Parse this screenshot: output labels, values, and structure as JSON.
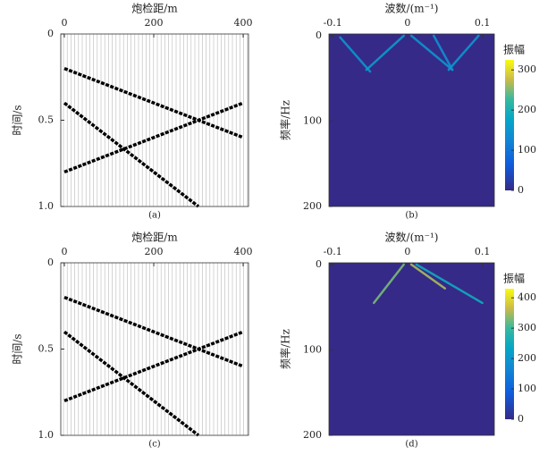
{
  "chart_data": [
    {
      "type": "wiggle",
      "xlabel": "炮检距/m",
      "ylabel": "时间/s",
      "caption": "(a)",
      "xlim": [
        -8,
        412
      ],
      "ylim": [
        0,
        1
      ],
      "xticks": [
        0,
        200,
        400
      ],
      "yticks": [
        0,
        0.5,
        {
          "value": 1,
          "label": "1.0"
        }
      ],
      "series": [
        {
          "x": [
            0,
            400
          ],
          "y": [
            0.2,
            0.6
          ]
        },
        {
          "x": [
            0,
            300
          ],
          "y": [
            0.4,
            1.0
          ]
        },
        {
          "x": [
            0,
            400
          ],
          "y": [
            0.8,
            0.4
          ]
        }
      ],
      "color": "#000000"
    },
    {
      "type": "fk",
      "xlabel": "波数/(m⁻¹)",
      "ylabel": "频率/Hz",
      "caption": "(b)",
      "colorbar_label": "振幅",
      "xlim": [
        -0.105,
        0.116
      ],
      "ylim": [
        -2,
        200
      ],
      "xticks": [
        -0.1,
        0,
        0.1
      ],
      "yticks": [
        0,
        100,
        200
      ],
      "clim": [
        0,
        325
      ],
      "cticks": [
        0,
        100,
        200,
        300
      ],
      "series": [
        {
          "x": [
            -0.09,
            -0.05
          ],
          "y": [
            2,
            42
          ],
          "amplitude": 150
        },
        {
          "x": [
            -0.005,
            -0.055
          ],
          "y": [
            0,
            40
          ],
          "amplitude": 160
        },
        {
          "x": [
            0.005,
            0.06
          ],
          "y": [
            0,
            40
          ],
          "amplitude": 150
        },
        {
          "x": [
            0.035,
            0.06
          ],
          "y": [
            0,
            40
          ],
          "amplitude": 140
        },
        {
          "x": [
            0.095,
            0.055
          ],
          "y": [
            0,
            40
          ],
          "amplitude": 150
        }
      ]
    },
    {
      "type": "wiggle",
      "xlabel": "炮检距/m",
      "ylabel": "时间/s",
      "caption": "(c)",
      "xlim": [
        -8,
        412
      ],
      "ylim": [
        0,
        1
      ],
      "xticks": [
        0,
        200,
        400
      ],
      "yticks": [
        0,
        0.5,
        {
          "value": 1,
          "label": "1.0"
        }
      ],
      "series": [
        {
          "x": [
            0,
            400
          ],
          "y": [
            0.2,
            0.6
          ]
        },
        {
          "x": [
            0,
            300
          ],
          "y": [
            0.4,
            1.0
          ]
        },
        {
          "x": [
            0,
            400
          ],
          "y": [
            0.8,
            0.4
          ]
        }
      ],
      "color": "#000000"
    },
    {
      "type": "fk",
      "xlabel": "波数/(m⁻¹)",
      "ylabel": "频率/Hz",
      "caption": "(d)",
      "colorbar_label": "振幅",
      "xlim": [
        -0.105,
        0.116
      ],
      "ylim": [
        -2,
        200
      ],
      "xticks": [
        -0.1,
        0,
        0.1
      ],
      "yticks": [
        0,
        100,
        200
      ],
      "clim": [
        0,
        430
      ],
      "cticks": [
        0,
        100,
        200,
        300,
        400
      ],
      "series": [
        {
          "x": [
            -0.005,
            -0.045
          ],
          "y": [
            0,
            45
          ],
          "amplitude": 330
        },
        {
          "x": [
            0.005,
            0.05
          ],
          "y": [
            0,
            28
          ],
          "amplitude": 350
        },
        {
          "x": [
            0.012,
            0.1
          ],
          "y": [
            0,
            45
          ],
          "amplitude": 250
        }
      ]
    }
  ]
}
